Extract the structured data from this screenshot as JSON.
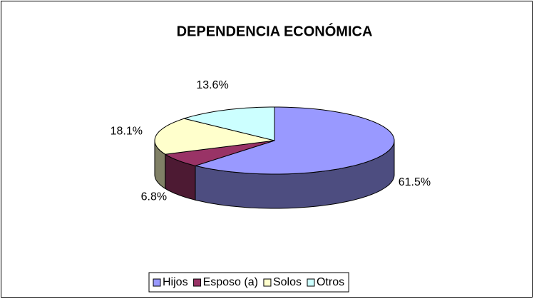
{
  "chart_data": {
    "type": "pie3d",
    "title": "DEPENDENCIA ECONÓMICA",
    "categories": [
      "Hijos",
      "Esposo (a)",
      "Solos",
      "Otros"
    ],
    "values": [
      61.5,
      6.8,
      18.1,
      13.6
    ],
    "value_labels": [
      "61.5%",
      "6.8%",
      "18.1%",
      "13.6%"
    ],
    "colors": [
      "#9999ff",
      "#993366",
      "#ffffcc",
      "#ccffff"
    ],
    "legend": "bottom"
  }
}
